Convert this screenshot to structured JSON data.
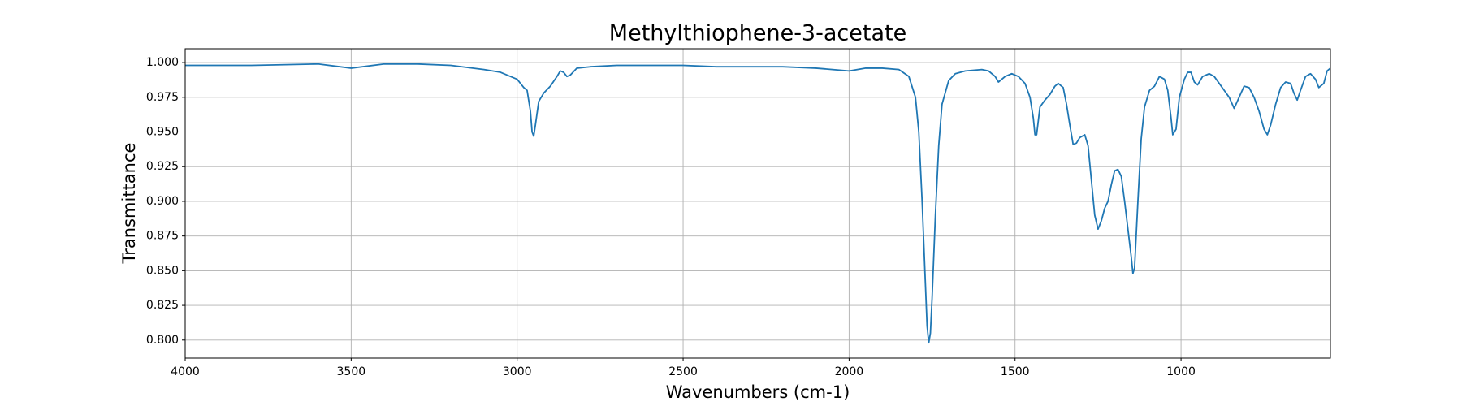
{
  "chart_data": {
    "type": "line",
    "title": "Methylthiophene-3-acetate",
    "xlabel": "Wavenumbers (cm-1)",
    "ylabel": "Transmittance",
    "color": "#1f77b4",
    "grid": true,
    "xlim": [
      4000,
      550
    ],
    "xticks": [
      4000,
      3500,
      3000,
      2500,
      2000,
      1500,
      1000
    ],
    "ylim": [
      0.787,
      1.01
    ],
    "yticks": [
      {
        "value": 0.8,
        "label": "0.800"
      },
      0.825,
      {
        "value": 0.85,
        "label": "0.850"
      },
      0.875,
      {
        "value": 0.9,
        "label": "0.900"
      },
      0.925,
      {
        "value": 0.95,
        "label": "0.950"
      },
      0.975,
      {
        "value": 1,
        "label": "1.000"
      }
    ],
    "x": [
      4000,
      3800,
      3600,
      3500,
      3400,
      3300,
      3200,
      3100,
      3050,
      3000,
      2980,
      2970,
      2960,
      2955,
      2950,
      2945,
      2935,
      2920,
      2900,
      2880,
      2870,
      2860,
      2850,
      2840,
      2820,
      2780,
      2700,
      2600,
      2500,
      2400,
      2300,
      2200,
      2100,
      2050,
      2000,
      1950,
      1900,
      1850,
      1820,
      1800,
      1790,
      1780,
      1770,
      1765,
      1760,
      1755,
      1750,
      1740,
      1730,
      1720,
      1700,
      1680,
      1650,
      1600,
      1580,
      1560,
      1550,
      1530,
      1510,
      1490,
      1470,
      1455,
      1445,
      1440,
      1435,
      1425,
      1410,
      1395,
      1380,
      1370,
      1355,
      1345,
      1335,
      1325,
      1315,
      1305,
      1290,
      1280,
      1270,
      1260,
      1250,
      1240,
      1230,
      1220,
      1210,
      1200,
      1190,
      1180,
      1170,
      1160,
      1150,
      1145,
      1140,
      1130,
      1120,
      1110,
      1095,
      1080,
      1065,
      1050,
      1040,
      1030,
      1025,
      1015,
      1005,
      990,
      980,
      970,
      960,
      950,
      935,
      915,
      900,
      885,
      870,
      855,
      840,
      825,
      810,
      795,
      780,
      765,
      750,
      740,
      730,
      715,
      700,
      685,
      670,
      660,
      650,
      640,
      625,
      610,
      595,
      585,
      570,
      560,
      550
    ],
    "values": [
      0.998,
      0.998,
      0.999,
      0.996,
      0.999,
      0.999,
      0.998,
      0.995,
      0.993,
      0.988,
      0.982,
      0.98,
      0.965,
      0.95,
      0.947,
      0.955,
      0.972,
      0.978,
      0.983,
      0.99,
      0.994,
      0.993,
      0.99,
      0.991,
      0.996,
      0.997,
      0.998,
      0.998,
      0.998,
      0.997,
      0.997,
      0.997,
      0.996,
      0.995,
      0.994,
      0.996,
      0.996,
      0.995,
      0.99,
      0.975,
      0.95,
      0.9,
      0.84,
      0.81,
      0.798,
      0.805,
      0.83,
      0.89,
      0.94,
      0.97,
      0.987,
      0.992,
      0.994,
      0.995,
      0.994,
      0.99,
      0.986,
      0.99,
      0.992,
      0.99,
      0.985,
      0.975,
      0.96,
      0.948,
      0.948,
      0.968,
      0.973,
      0.977,
      0.983,
      0.985,
      0.982,
      0.97,
      0.955,
      0.941,
      0.942,
      0.946,
      0.948,
      0.94,
      0.915,
      0.89,
      0.88,
      0.886,
      0.895,
      0.9,
      0.912,
      0.922,
      0.923,
      0.918,
      0.9,
      0.88,
      0.86,
      0.848,
      0.852,
      0.9,
      0.945,
      0.968,
      0.98,
      0.983,
      0.99,
      0.988,
      0.98,
      0.96,
      0.948,
      0.952,
      0.975,
      0.988,
      0.993,
      0.993,
      0.986,
      0.984,
      0.99,
      0.992,
      0.99,
      0.985,
      0.98,
      0.975,
      0.967,
      0.975,
      0.983,
      0.982,
      0.975,
      0.965,
      0.952,
      0.948,
      0.955,
      0.97,
      0.982,
      0.986,
      0.985,
      0.978,
      0.973,
      0.98,
      0.99,
      0.992,
      0.988,
      0.982,
      0.985,
      0.994,
      0.996
    ]
  }
}
